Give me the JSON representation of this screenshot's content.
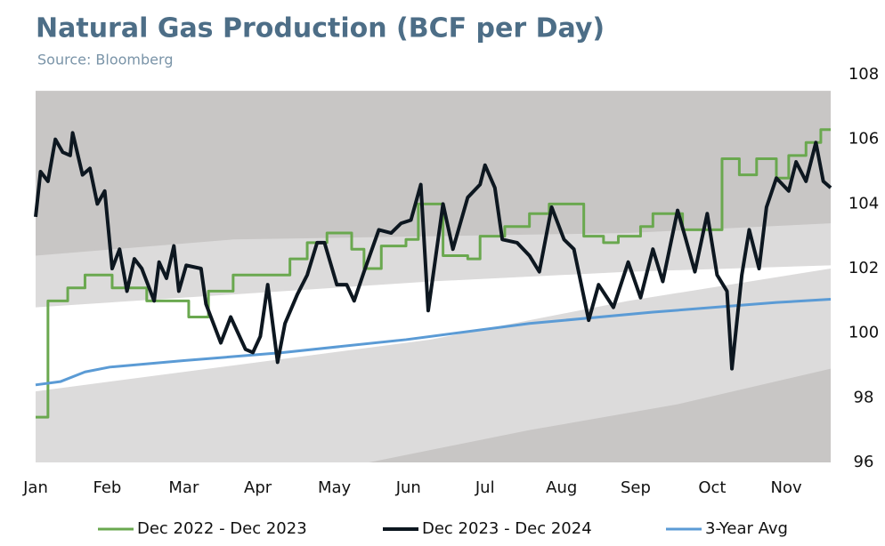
{
  "chart_data": {
    "type": "line",
    "title": "Natural Gas Production (BCF per Day)",
    "subtitle": "Source: Bloomberg",
    "xlim": [
      0,
      322
    ],
    "xticks": [
      {
        "value": 0,
        "label": "Jan"
      },
      {
        "value": 29,
        "label": "Feb"
      },
      {
        "value": 60,
        "label": "Mar"
      },
      {
        "value": 90,
        "label": "Apr"
      },
      {
        "value": 121,
        "label": "May"
      },
      {
        "value": 151,
        "label": "Jun"
      },
      {
        "value": 182,
        "label": "Jul"
      },
      {
        "value": 213,
        "label": "Aug"
      },
      {
        "value": 243,
        "label": "Sep"
      },
      {
        "value": 274,
        "label": "Oct"
      },
      {
        "value": 304,
        "label": "Nov"
      }
    ],
    "ylim": [
      96,
      108
    ],
    "yticks": [
      96,
      98,
      100,
      102,
      104,
      106,
      108
    ],
    "y_axis_side": "right",
    "bands": [
      {
        "color": "#c8c6c5",
        "x": [
          0,
          322
        ],
        "upper": [
          107.5,
          107.5
        ],
        "lower": [
          96,
          96
        ]
      },
      {
        "color": "#dcdbdb",
        "x": [
          0,
          80,
          160,
          240,
          322
        ],
        "upper": [
          102.4,
          102.9,
          103.0,
          103.1,
          103.4
        ],
        "lower": [
          96,
          96,
          96,
          96,
          96
        ]
      },
      {
        "color": "#ffffff",
        "x": [
          0,
          80,
          160,
          240,
          322
        ],
        "upper": [
          100.8,
          101.2,
          101.6,
          101.9,
          102.1
        ],
        "lower": [
          98.2,
          99.0,
          99.8,
          101.0,
          102.0
        ]
      },
      {
        "color": "#c8c6c5",
        "x": [
          135,
          200,
          260,
          322
        ],
        "upper": [
          96,
          97.0,
          97.8,
          98.9
        ],
        "lower": [
          96,
          96,
          96,
          96
        ]
      }
    ],
    "series": [
      {
        "name": "Dec 2022 - Dec 2023",
        "color": "#6aa84f",
        "width": 3,
        "step": true,
        "x": [
          0,
          5,
          13,
          20,
          31,
          45,
          62,
          70,
          80,
          103,
          110,
          118,
          128,
          133,
          140,
          150,
          155,
          165,
          175,
          180,
          190,
          200,
          208,
          222,
          230,
          236,
          245,
          250,
          262,
          278,
          285,
          292,
          300,
          305,
          312,
          318,
          322
        ],
        "values": [
          97.4,
          101.0,
          101.4,
          101.8,
          101.4,
          101.0,
          100.5,
          101.3,
          101.8,
          102.3,
          102.8,
          103.1,
          102.6,
          102.0,
          102.7,
          102.9,
          104.0,
          102.4,
          102.3,
          103.0,
          103.3,
          103.7,
          104.0,
          103.0,
          102.8,
          103.0,
          103.3,
          103.7,
          103.2,
          105.4,
          104.9,
          105.4,
          104.8,
          105.5,
          105.9,
          106.3,
          106.3
        ]
      },
      {
        "name": "Dec 2023 - Dec 2024",
        "color": "#0d1720",
        "width": 4,
        "step": false,
        "x": [
          0,
          2,
          5,
          8,
          11,
          14,
          15,
          19,
          22,
          25,
          28,
          31,
          34,
          37,
          40,
          43,
          48,
          50,
          53,
          56,
          58,
          61,
          67,
          69,
          75,
          79,
          85,
          88,
          91,
          94,
          98,
          101,
          106,
          110,
          114,
          117,
          122,
          126,
          129,
          133,
          139,
          144,
          148,
          152,
          156,
          159,
          165,
          169,
          175,
          180,
          182,
          186,
          189,
          195,
          200,
          204,
          209,
          214,
          218,
          224,
          228,
          234,
          240,
          245,
          250,
          254,
          260,
          263,
          267,
          272,
          276,
          280,
          282,
          286,
          289,
          293,
          296,
          300,
          305,
          308,
          312,
          316,
          319,
          322
        ],
        "values": [
          103.6,
          105.0,
          104.7,
          106.0,
          105.6,
          105.5,
          106.2,
          104.9,
          105.1,
          104.0,
          104.4,
          102.0,
          102.6,
          101.3,
          102.3,
          102.0,
          101.0,
          102.2,
          101.7,
          102.7,
          101.3,
          102.1,
          102.0,
          100.9,
          99.7,
          100.5,
          99.5,
          99.4,
          99.9,
          101.5,
          99.1,
          100.3,
          101.2,
          101.8,
          102.8,
          102.8,
          101.5,
          101.5,
          101.0,
          101.9,
          103.2,
          103.1,
          103.4,
          103.5,
          104.6,
          100.7,
          104.0,
          102.6,
          104.2,
          104.6,
          105.2,
          104.5,
          102.9,
          102.8,
          102.4,
          101.9,
          103.9,
          102.9,
          102.6,
          100.4,
          101.5,
          100.8,
          102.2,
          101.1,
          102.6,
          101.6,
          103.8,
          103.0,
          101.9,
          103.7,
          101.8,
          101.3,
          98.9,
          101.8,
          103.2,
          102.0,
          103.9,
          104.8,
          104.4,
          105.3,
          104.7,
          105.9,
          104.7,
          104.5
        ]
      },
      {
        "name": "3-Year Avg",
        "color": "#5b9bd5",
        "width": 3,
        "step": false,
        "x": [
          0,
          10,
          20,
          30,
          60,
          100,
          150,
          200,
          250,
          300,
          322
        ],
        "values": [
          98.4,
          98.5,
          98.8,
          98.95,
          99.15,
          99.4,
          99.8,
          100.3,
          100.65,
          100.95,
          101.05
        ]
      }
    ]
  }
}
